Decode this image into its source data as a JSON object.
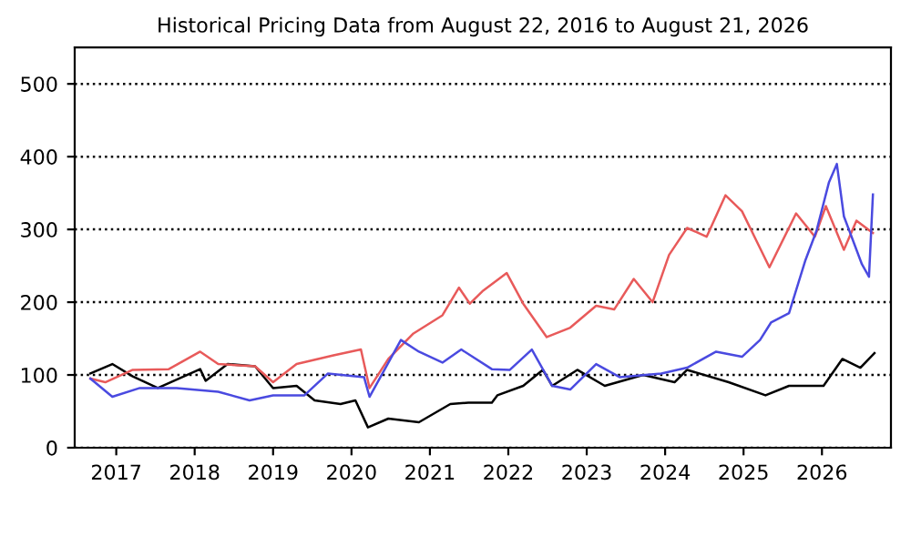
{
  "chart_data": {
    "type": "line",
    "title": "Historical Pricing Data from August 22, 2016 to August 21, 2026",
    "xlim": [
      2016.47,
      2026.88
    ],
    "xticks": [
      2017,
      2018,
      2019,
      2020,
      2021,
      2022,
      2023,
      2024,
      2025,
      2026
    ],
    "ylim": [
      0,
      550
    ],
    "yticks": [
      0,
      100,
      200,
      300,
      400,
      500
    ],
    "grid": "y",
    "line_style": "solid",
    "marker": "none",
    "series": [
      {
        "color": "#000000",
        "x": [
          2016.67,
          2016.95,
          2017.21,
          2017.53,
          2018.07,
          2018.14,
          2018.42,
          2018.77,
          2019.0,
          2019.3,
          2019.53,
          2019.86,
          2020.05,
          2020.21,
          2020.47,
          2020.86,
          2021.26,
          2021.49,
          2021.79,
          2021.86,
          2022.19,
          2022.44,
          2022.56,
          2022.88,
          2023.23,
          2023.72,
          2024.12,
          2024.28,
          2024.81,
          2025.28,
          2025.58,
          2026.02,
          2026.26,
          2026.49,
          2026.67
        ],
        "values": [
          102,
          115,
          98,
          82,
          108,
          92,
          115,
          112,
          82,
          85,
          65,
          60,
          65,
          28,
          40,
          35,
          60,
          62,
          62,
          72,
          85,
          107,
          85,
          107,
          85,
          100,
          90,
          107,
          90,
          72,
          85,
          85,
          122,
          110,
          130
        ]
      },
      {
        "color": "#e85a5a",
        "x": [
          2016.67,
          2016.86,
          2017.21,
          2017.67,
          2018.07,
          2018.3,
          2018.77,
          2019.0,
          2019.3,
          2019.77,
          2020.12,
          2020.23,
          2020.47,
          2020.79,
          2021.16,
          2021.37,
          2021.51,
          2021.67,
          2021.98,
          2022.19,
          2022.49,
          2022.79,
          2023.12,
          2023.35,
          2023.6,
          2023.84,
          2024.05,
          2024.28,
          2024.53,
          2024.77,
          2024.98,
          2025.33,
          2025.67,
          2025.91,
          2026.05,
          2026.28,
          2026.44,
          2026.65
        ],
        "values": [
          95,
          90,
          107,
          108,
          132,
          115,
          112,
          90,
          115,
          127,
          135,
          82,
          122,
          157,
          182,
          220,
          198,
          215,
          240,
          198,
          152,
          165,
          195,
          190,
          232,
          200,
          265,
          302,
          290,
          347,
          325,
          248,
          322,
          290,
          332,
          272,
          312,
          295
        ]
      },
      {
        "color": "#4a4ae0",
        "x": [
          2016.67,
          2016.95,
          2017.3,
          2017.77,
          2018.3,
          2018.7,
          2019.0,
          2019.4,
          2019.7,
          2020.16,
          2020.23,
          2020.63,
          2020.86,
          2021.16,
          2021.4,
          2021.79,
          2022.02,
          2022.3,
          2022.56,
          2022.79,
          2023.12,
          2023.42,
          2023.95,
          2024.28,
          2024.65,
          2024.98,
          2025.21,
          2025.35,
          2025.58,
          2025.79,
          2025.93,
          2026.09,
          2026.19,
          2026.28,
          2026.51,
          2026.6,
          2026.65
        ],
        "values": [
          95,
          70,
          82,
          82,
          77,
          65,
          72,
          72,
          102,
          97,
          70,
          148,
          132,
          117,
          135,
          108,
          107,
          135,
          85,
          80,
          115,
          97,
          102,
          110,
          132,
          125,
          148,
          172,
          185,
          258,
          298,
          365,
          390,
          318,
          252,
          235,
          348
        ]
      }
    ]
  }
}
